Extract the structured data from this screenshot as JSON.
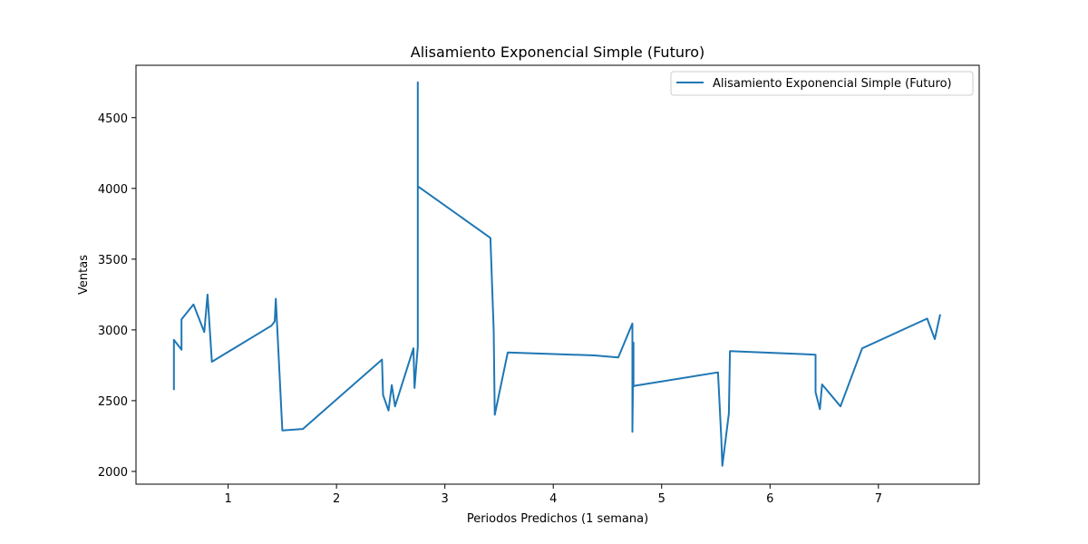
{
  "chart_data": {
    "type": "line",
    "title": "Alisamiento Exponencial Simple (Futuro)",
    "xlabel": "Periodos Predichos (1 semana)",
    "ylabel": "Ventas",
    "xlim": [
      0.15,
      7.93
    ],
    "ylim": [
      1910,
      4870
    ],
    "xticks": [
      1,
      2,
      3,
      4,
      5,
      6,
      7
    ],
    "yticks": [
      2000,
      2500,
      3000,
      3500,
      4000,
      4500
    ],
    "grid": false,
    "legend_position": "top-right",
    "series": [
      {
        "name": "Alisamiento Exponencial Simple (Futuro)",
        "color": "#1f77b4",
        "x": [
          0.5,
          0.5,
          0.57,
          0.57,
          0.68,
          0.78,
          0.81,
          0.85,
          1.4,
          1.43,
          1.44,
          1.5,
          1.69,
          2.42,
          2.43,
          2.48,
          2.51,
          2.54,
          2.71,
          2.72,
          2.75,
          2.75,
          2.75,
          3.42,
          3.45,
          3.46,
          3.58,
          4.38,
          4.6,
          4.73,
          4.73,
          4.74,
          4.74,
          4.75,
          5.52,
          5.55,
          5.56,
          5.62,
          5.63,
          6.42,
          6.42,
          6.46,
          6.48,
          6.65,
          6.85,
          7.45,
          7.52,
          7.57
        ],
        "y": [
          2575,
          2930,
          2860,
          3075,
          3180,
          2985,
          3250,
          2775,
          3030,
          3060,
          3220,
          2290,
          2300,
          2790,
          2540,
          2430,
          2610,
          2460,
          2870,
          2590,
          2880,
          4750,
          4015,
          3650,
          3000,
          2400,
          2840,
          2820,
          2805,
          3045,
          2280,
          2910,
          2600,
          2605,
          2700,
          2240,
          2040,
          2410,
          2850,
          2825,
          2560,
          2440,
          2615,
          2460,
          2870,
          3080,
          2935,
          3110
        ]
      }
    ]
  }
}
